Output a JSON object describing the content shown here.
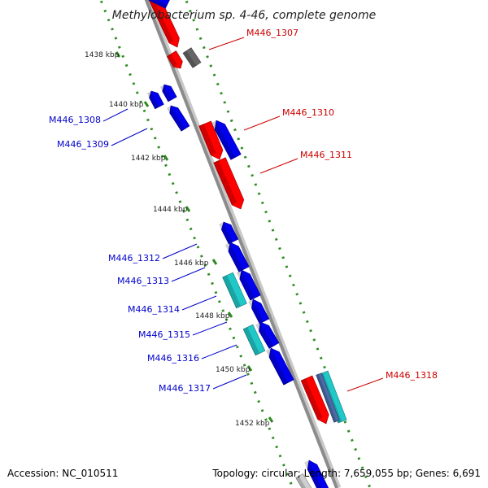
{
  "title": "Methylobacterium sp. 4-46, complete genome",
  "footer": {
    "accession": "Accession: NC_010511",
    "summary": "Topology: circular; Length: 7,659,055 bp; Genes: 6,691"
  },
  "colors": {
    "backbone": "#8c8c8c",
    "backbone_shadow": "#c8c8c8",
    "dotted_track": "#2e8b22",
    "forward_gene": "#ff0000",
    "reverse_gene": "#0000ee",
    "rna_gene": "#20c8c8",
    "pseudo_gene": "#666666",
    "label_forward": "#cc0000",
    "label_reverse": "#0000cc"
  },
  "tick_labels": [
    "1438 kbp",
    "1440 kbp",
    "1442 kbp",
    "1444 kbp",
    "1446 kbp",
    "1448 kbp",
    "1450 kbp",
    "1452 kbp"
  ],
  "gene_labels": {
    "forward": [
      "M446_1307",
      "M446_1310",
      "M446_1311",
      "M446_1318"
    ],
    "reverse": [
      "M446_1308",
      "M446_1309",
      "M446_1312",
      "M446_1313",
      "M446_1314",
      "M446_1315",
      "M446_1316",
      "M446_1317"
    ]
  }
}
